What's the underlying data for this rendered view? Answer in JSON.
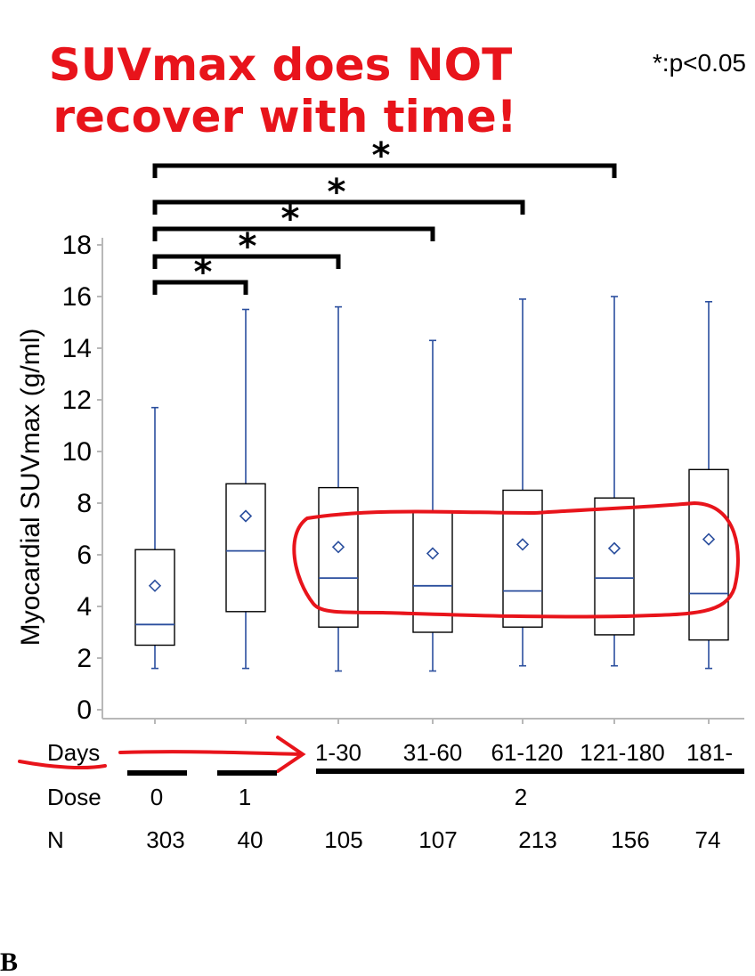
{
  "headline": [
    "SUVmax does NOT",
    "recover with time!"
  ],
  "significance_note": "*:p<0.05",
  "panel_label": "B",
  "colors": {
    "box_stroke": "#000000",
    "whisker": "#2b4f9e",
    "median": "#2b4f9e",
    "mean_marker": "#2b4f9e",
    "annotation_red": "#e8141b"
  },
  "table": {
    "days_label": "Days",
    "dose_label": "Dose",
    "n_label": "N",
    "days": [
      "",
      "",
      "1-30",
      "31-60",
      "61-120",
      "121-180",
      "181-"
    ],
    "dose": [
      "0",
      "1",
      "2"
    ],
    "n": [
      "303",
      "40",
      "105",
      "107",
      "213",
      "156",
      "74"
    ]
  },
  "chart_data": {
    "type": "box",
    "ylabel": "Myocardial SUVmax (g/ml)",
    "ylim": [
      0,
      18
    ],
    "yticks": [
      0,
      2,
      4,
      6,
      8,
      10,
      12,
      14,
      16,
      18
    ],
    "groups": [
      {
        "whisker_low": 1.6,
        "q1": 2.5,
        "median": 3.3,
        "q3": 6.2,
        "whisker_high": 11.7,
        "mean": 4.8
      },
      {
        "whisker_low": 1.6,
        "q1": 3.8,
        "median": 6.15,
        "q3": 8.75,
        "whisker_high": 15.5,
        "mean": 7.5
      },
      {
        "whisker_low": 1.5,
        "q1": 3.2,
        "median": 5.1,
        "q3": 8.6,
        "whisker_high": 15.6,
        "mean": 6.3
      },
      {
        "whisker_low": 1.5,
        "q1": 3.0,
        "median": 4.8,
        "q3": 7.7,
        "whisker_high": 14.3,
        "mean": 6.05
      },
      {
        "whisker_low": 1.7,
        "q1": 3.2,
        "median": 4.6,
        "q3": 8.5,
        "whisker_high": 15.9,
        "mean": 6.4
      },
      {
        "whisker_low": 1.7,
        "q1": 2.9,
        "median": 5.1,
        "q3": 8.2,
        "whisker_high": 16.0,
        "mean": 6.25
      },
      {
        "whisker_low": 1.6,
        "q1": 2.7,
        "median": 4.5,
        "q3": 9.3,
        "whisker_high": 15.8,
        "mean": 6.6
      }
    ],
    "comparisons": [
      {
        "from": 0,
        "to": 1,
        "label": "*"
      },
      {
        "from": 0,
        "to": 2,
        "label": "*"
      },
      {
        "from": 0,
        "to": 3,
        "label": "*"
      },
      {
        "from": 0,
        "to": 4,
        "label": "*"
      },
      {
        "from": 0,
        "to": 5,
        "label": "*"
      }
    ]
  }
}
